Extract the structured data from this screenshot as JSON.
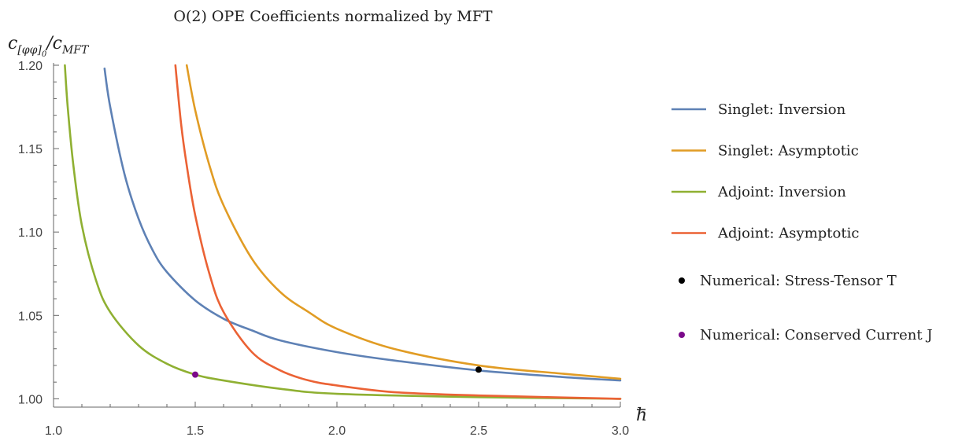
{
  "chart_data": {
    "type": "line",
    "title": "O(2) OPE Coefficients normalized by MFT",
    "ylabel_base": "c",
    "ylabel_sub": "[φφ]",
    "ylabel_sub_index": "0",
    "ylabel_sep": "/c",
    "ylabel_den_sub": "MFT",
    "xlabel": "h",
    "xlim": [
      1.0,
      3.0
    ],
    "ylim": [
      0.995,
      1.2
    ],
    "xticks": [
      1.0,
      1.5,
      2.0,
      2.5,
      3.0
    ],
    "xtick_labels": [
      "1.0",
      "1.5",
      "2.0",
      "2.5",
      "3.0"
    ],
    "yticks": [
      1.0,
      1.05,
      1.1,
      1.15,
      1.2
    ],
    "ytick_labels": [
      "1.00",
      "1.05",
      "1.10",
      "1.15",
      "1.20"
    ],
    "grid": false,
    "legend_position": "right",
    "series": [
      {
        "name": "Singlet: Inversion",
        "color": "#5e81b5",
        "x": [
          1.18,
          1.2,
          1.25,
          1.3,
          1.35,
          1.4,
          1.5,
          1.6,
          1.7,
          1.8,
          2.0,
          2.2,
          2.5,
          2.8,
          3.0
        ],
        "y": [
          1.198,
          1.175,
          1.135,
          1.108,
          1.089,
          1.076,
          1.059,
          1.048,
          1.041,
          1.035,
          1.028,
          1.023,
          1.017,
          1.013,
          1.011
        ]
      },
      {
        "name": "Singlet: Asymptotic",
        "color": "#e19c24",
        "x": [
          1.47,
          1.5,
          1.55,
          1.6,
          1.7,
          1.8,
          1.9,
          2.0,
          2.2,
          2.5,
          2.8,
          3.0
        ],
        "y": [
          1.2,
          1.173,
          1.14,
          1.116,
          1.084,
          1.064,
          1.052,
          1.042,
          1.03,
          1.02,
          1.015,
          1.012
        ]
      },
      {
        "name": "Adjoint: Inversion",
        "color": "#8fb032",
        "x": [
          1.04,
          1.05,
          1.07,
          1.1,
          1.15,
          1.2,
          1.3,
          1.4,
          1.5,
          1.6,
          1.8,
          2.0,
          2.5,
          3.0
        ],
        "y": [
          1.2,
          1.175,
          1.14,
          1.104,
          1.071,
          1.052,
          1.032,
          1.021,
          1.0145,
          1.011,
          1.006,
          1.003,
          1.001,
          1.0
        ]
      },
      {
        "name": "Adjoint: Asymptotic",
        "color": "#eb6235",
        "x": [
          1.43,
          1.45,
          1.47,
          1.5,
          1.55,
          1.6,
          1.7,
          1.8,
          1.9,
          2.0,
          2.2,
          2.5,
          3.0
        ],
        "y": [
          1.2,
          1.165,
          1.14,
          1.11,
          1.075,
          1.052,
          1.028,
          1.017,
          1.011,
          1.008,
          1.004,
          1.002,
          1.0
        ]
      }
    ],
    "points": [
      {
        "name": "Numerical: Stress-Tensor T",
        "x": 2.5,
        "y": 1.0175,
        "color": "#000000"
      },
      {
        "name": "Numerical: Conserved Current J",
        "x": 1.5,
        "y": 1.0145,
        "color": "#7b0a8a"
      }
    ]
  }
}
